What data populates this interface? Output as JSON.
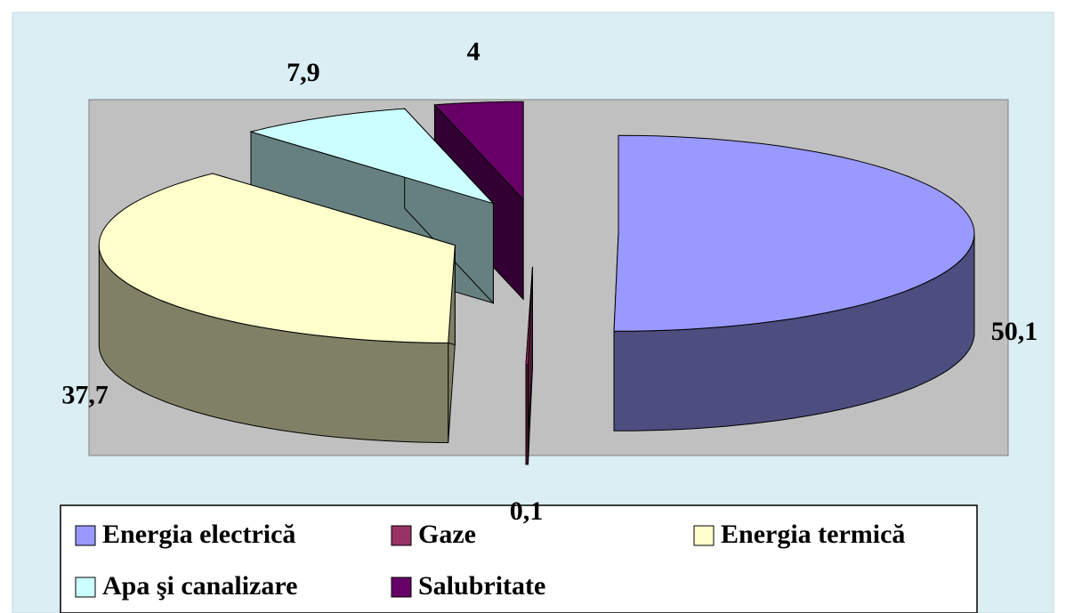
{
  "chart_data": {
    "type": "pie3d",
    "categories": [
      "Energia electrică",
      "Gaze",
      "Energia termică",
      "Apa şi canalizare",
      "Salubritate"
    ],
    "values": [
      50.1,
      0.1,
      37.7,
      7.9,
      4
    ],
    "value_labels": [
      "50,1",
      "0,1",
      "37,7",
      "7,9",
      "4"
    ],
    "colors": [
      "#9999ff",
      "#993366",
      "#ffffcc",
      "#ccffff",
      "#660066"
    ],
    "legend": "bottom"
  }
}
